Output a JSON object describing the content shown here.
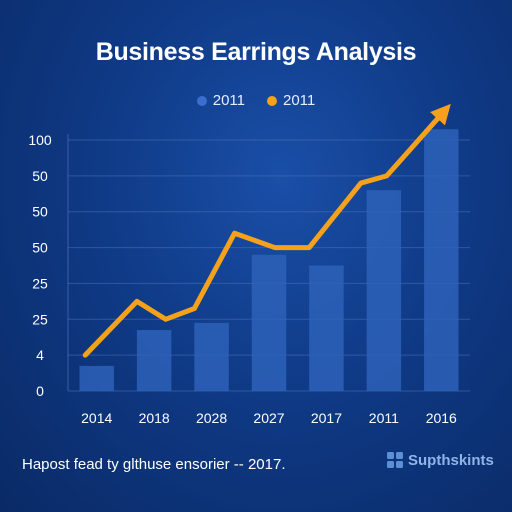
{
  "colors": {
    "bar": "#2d62b8",
    "line": "#f5a21a",
    "grid": "#4a72b8",
    "text": "#ffffff"
  },
  "footnote": "Hapost fead ty glthuse ensorier -- 2017.",
  "brand": {
    "name": "Supthskints",
    "icon": "grid-logo-icon"
  },
  "chart_data": {
    "type": "bar",
    "title": "Business Earrings Analysis",
    "xlabel": "",
    "ylabel": "",
    "categories": [
      "2014",
      "2018",
      "2028",
      "2027",
      "2017",
      "2011",
      "2016"
    ],
    "y_tick_labels": [
      "0",
      "4",
      "25",
      "25",
      "50",
      "50",
      "50",
      "100"
    ],
    "ylim": [
      0,
      7
    ],
    "grid": true,
    "legend_position": "top-center",
    "series": [
      {
        "name": "2011",
        "type": "bar",
        "color": "#2d62b8",
        "values": [
          0.7,
          1.7,
          1.9,
          3.8,
          3.5,
          5.6,
          7.3
        ]
      },
      {
        "name": "2011",
        "type": "line",
        "color": "#f5a21a",
        "x": [
          0.3,
          1.2,
          1.7,
          2.2,
          2.9,
          3.6,
          4.2,
          5.1,
          5.55,
          6.55
        ],
        "values": [
          1.0,
          2.5,
          2.0,
          2.3,
          4.4,
          4.0,
          4.0,
          5.8,
          6.0,
          7.8
        ]
      }
    ]
  }
}
